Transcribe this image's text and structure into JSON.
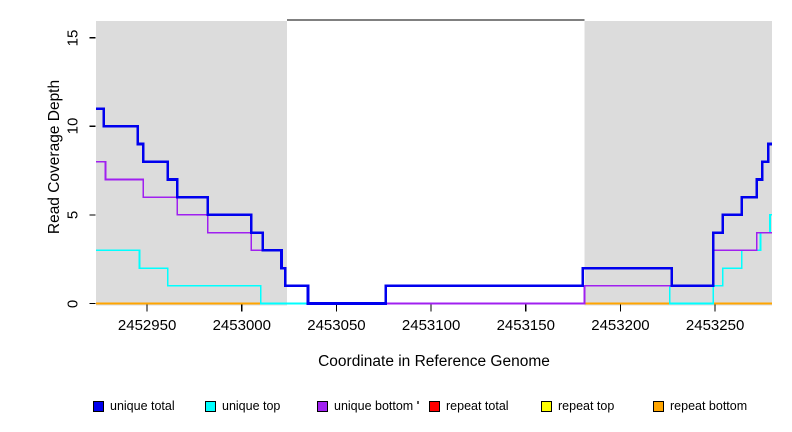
{
  "chart_data": {
    "type": "line",
    "subtype": "step-coverage",
    "title": "",
    "xlabel": "Coordinate in Reference Genome",
    "ylabel": "Read Coverage Depth",
    "xlim": [
      2452923,
      2453280
    ],
    "ylim": [
      0,
      16
    ],
    "x_ticks": [
      2452950,
      2453000,
      2453050,
      2453100,
      2453150,
      2453200,
      2453250
    ],
    "y_ticks": [
      0,
      5,
      10,
      15
    ],
    "grid": "off",
    "legend_position": "bottom",
    "shade_color": "#DCDCDC",
    "shaded_regions": [
      {
        "x0": 2452923,
        "x1": 2453024
      },
      {
        "x0": 2453181,
        "x1": 2453280
      }
    ],
    "gap_top_line": {
      "y": 16,
      "x0": 2453024,
      "x1": 2453181,
      "color": "#000000"
    },
    "series": [
      {
        "id": "repeat-total",
        "name": "repeat total",
        "color": "#FF0000",
        "line_width": 1.6,
        "steps": [
          [
            2452923,
            0
          ]
        ]
      },
      {
        "id": "repeat-top",
        "name": "repeat top",
        "color": "#FFFF00",
        "line_width": 1.6,
        "steps": [
          [
            2452923,
            0
          ]
        ]
      },
      {
        "id": "repeat-bottom",
        "name": "repeat bottom",
        "color": "#FFA500",
        "line_width": 1.6,
        "steps": [
          [
            2452923,
            0
          ]
        ]
      },
      {
        "id": "unique-top",
        "name": "unique top",
        "color": "#00FFFF",
        "line_width": 1.6,
        "steps": [
          [
            2452923,
            3
          ],
          [
            2452946,
            2
          ],
          [
            2452961,
            1
          ],
          [
            2453010,
            0
          ],
          [
            2453076,
            1
          ],
          [
            2453226,
            0
          ],
          [
            2453249,
            1
          ],
          [
            2453254,
            2
          ],
          [
            2453264,
            3
          ],
          [
            2453274,
            4
          ],
          [
            2453279,
            5
          ]
        ]
      },
      {
        "id": "unique-bottom",
        "name": "unique bottom",
        "color": "#A020F0",
        "line_width": 1.6,
        "steps": [
          [
            2452923,
            8
          ],
          [
            2452928,
            7
          ],
          [
            2452948,
            6
          ],
          [
            2452966,
            5
          ],
          [
            2452982,
            4
          ],
          [
            2453005,
            3
          ],
          [
            2453021,
            2
          ],
          [
            2453023,
            1
          ],
          [
            2453035,
            0
          ],
          [
            2453181,
            1
          ],
          [
            2453249,
            3
          ],
          [
            2453272,
            4
          ]
        ]
      },
      {
        "id": "unique-total",
        "name": "unique total",
        "color": "#0000EE",
        "line_width": 2.6,
        "steps": [
          [
            2452923,
            11
          ],
          [
            2452927,
            10
          ],
          [
            2452945,
            9
          ],
          [
            2452948,
            8
          ],
          [
            2452961,
            7
          ],
          [
            2452966,
            6
          ],
          [
            2452982,
            5
          ],
          [
            2453005,
            4
          ],
          [
            2453011,
            3
          ],
          [
            2453021,
            2
          ],
          [
            2453023,
            1
          ],
          [
            2453035,
            0
          ],
          [
            2453076,
            1
          ],
          [
            2453180,
            2
          ],
          [
            2453227,
            1
          ],
          [
            2453249,
            4
          ],
          [
            2453254,
            5
          ],
          [
            2453264,
            6
          ],
          [
            2453272,
            7
          ],
          [
            2453275,
            8
          ],
          [
            2453278,
            9
          ]
        ]
      }
    ]
  },
  "legend": {
    "items": [
      {
        "label": "unique total",
        "color": "#0000EE"
      },
      {
        "label": "unique top",
        "color": "#00FFFF"
      },
      {
        "label": "unique bottom",
        "color": "#A020F0"
      },
      {
        "label": "repeat total",
        "color": "#FF0000"
      },
      {
        "label": "repeat top",
        "color": "#FFFF00"
      },
      {
        "label": "repeat bottom",
        "color": "#FFA500"
      }
    ]
  }
}
